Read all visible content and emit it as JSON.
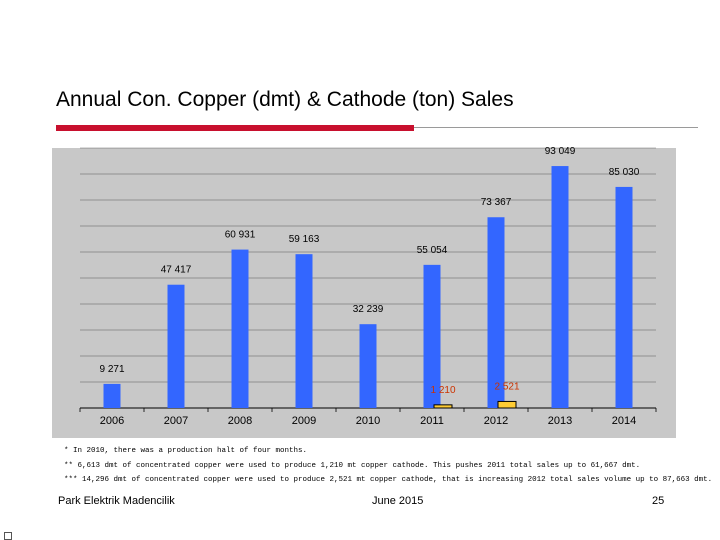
{
  "slide": {
    "title": "Annual Con. Copper (dmt) & Cathode (ton) Sales",
    "footnotes": [
      "* In 2010, there was a production halt of four months.",
      "** 6,613 dmt of concentrated copper were used to produce 1,210 mt copper cathode. This pushes 2011 total sales up to 61,667 dmt.",
      "*** 14,296 dmt of concentrated copper were used to produce 2,521 mt copper cathode, that is increasing 2012 total  sales volume up to 87,663 dmt."
    ],
    "footer": {
      "company": "Park Elektrik Madencilik",
      "date": "June 2015",
      "page": "25"
    }
  },
  "colors": {
    "concentrate": "#3366ff",
    "cathode": "#ffcc33",
    "plot_background": "#c8c8c8",
    "label_red": "#cc3300"
  },
  "chart_data": {
    "type": "bar",
    "title": "",
    "xlabel": "",
    "ylabel": "",
    "categories": [
      "2006",
      "2007",
      "2008",
      "2009",
      "2010",
      "2011",
      "2012",
      "2013",
      "2014"
    ],
    "ylim": [
      0,
      100000
    ],
    "grid": true,
    "series": [
      {
        "values": [
          9271,
          47417,
          60931,
          59163,
          32239,
          55054,
          73367,
          93049,
          85030
        ],
        "labels": [
          "9 271",
          "47 417",
          "60 931",
          "59 163",
          "32 239",
          "55 054",
          "73 367",
          "93 049",
          "85 030"
        ]
      },
      {
        "values": [
          null,
          null,
          null,
          null,
          null,
          1210,
          2521,
          null,
          null
        ],
        "labels": [
          null,
          null,
          null,
          null,
          null,
          "1 210",
          "2 521",
          null,
          null
        ]
      }
    ]
  }
}
